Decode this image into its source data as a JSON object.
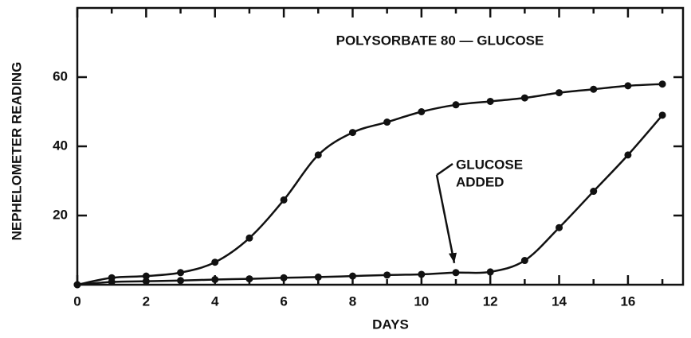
{
  "chart_data": {
    "type": "line",
    "title": "POLYSORBATE 80 — GLUCOSE",
    "xlabel": "DAYS",
    "ylabel": "NEPHELOMETER READING",
    "annotation": [
      "GLUCOSE",
      "ADDED"
    ],
    "annotation_at": [
      11,
      3.5
    ],
    "x": [
      0,
      1,
      2,
      3,
      4,
      5,
      6,
      7,
      8,
      9,
      10,
      11,
      12,
      13,
      14,
      15,
      16,
      17
    ],
    "series": [
      {
        "color": "#111111",
        "values": [
          0,
          2,
          2.5,
          3.5,
          6.5,
          13.5,
          24.5,
          37.5,
          44,
          47,
          50,
          52,
          53,
          54,
          55.5,
          56.5,
          57.5,
          58
        ]
      },
      {
        "color": "#111111",
        "values": [
          0,
          0.8,
          1,
          1.2,
          1.5,
          1.7,
          2,
          2.2,
          2.5,
          2.8,
          3,
          3.5,
          3.7,
          7,
          16.5,
          27,
          37.5,
          49
        ]
      }
    ],
    "xlim": [
      0,
      17.6
    ],
    "ylim": [
      0,
      80
    ],
    "xticks": [
      0,
      2,
      4,
      6,
      8,
      10,
      12,
      14,
      16
    ],
    "xminor": [
      1,
      3,
      5,
      7,
      9,
      11,
      13,
      15,
      17
    ],
    "yticks": [
      20,
      40,
      60
    ]
  }
}
